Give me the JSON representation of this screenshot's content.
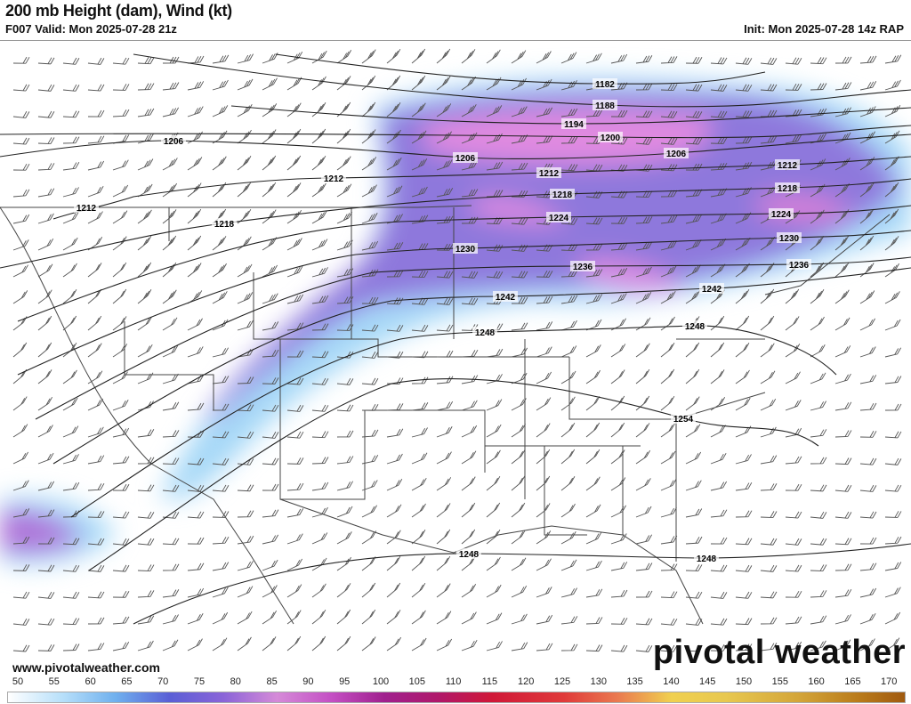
{
  "header": {
    "title": "200 mb Height (dam), Wind (kt)",
    "valid": "F007 Valid: Mon 2025-07-28 21z",
    "init": "Init: Mon 2025-07-28 14z RAP"
  },
  "map": {
    "contour_labels": [
      "1182",
      "1188",
      "1194",
      "1200",
      "1206",
      "1206",
      "1206",
      "1212",
      "1212",
      "1212",
      "1212",
      "1218",
      "1218",
      "1218",
      "1224",
      "1224",
      "1230",
      "1230",
      "1236",
      "1236",
      "1242",
      "1242",
      "1248",
      "1248",
      "1248",
      "1248",
      "1254"
    ],
    "colors": {
      "jet_outer": "#9fd3f5",
      "jet_mid": "#7d6ad8",
      "jet_core": "#d77ed8",
      "contour": "#222222",
      "borders": "#333333"
    }
  },
  "footer": {
    "url": "www.pivotalweather.com",
    "logo": "pivotal weather"
  },
  "colorbar": {
    "unit": "kt",
    "ticks": [
      "50",
      "55",
      "60",
      "65",
      "70",
      "75",
      "80",
      "85",
      "90",
      "95",
      "100",
      "105",
      "110",
      "115",
      "120",
      "125",
      "130",
      "135",
      "140",
      "145",
      "150",
      "155",
      "160",
      "165",
      "170"
    ]
  }
}
